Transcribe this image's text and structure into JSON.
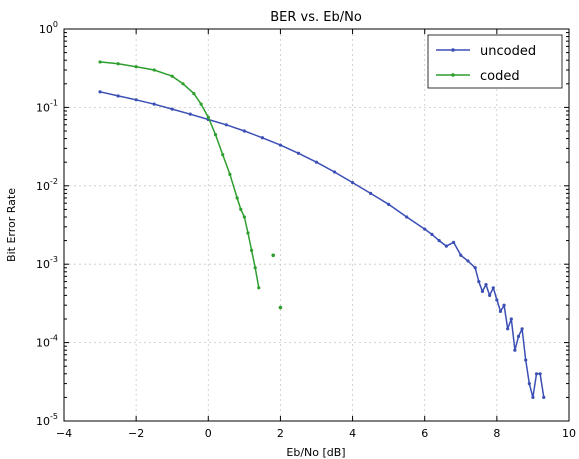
{
  "chart_data": {
    "type": "line",
    "title": "BER vs. Eb/No",
    "xlabel": "Eb/No [dB]",
    "ylabel": "Bit Error Rate",
    "xlim": [
      -4,
      10
    ],
    "ylim": [
      1e-05,
      1
    ],
    "yscale": "log",
    "grid": true,
    "legend_position": "top-right",
    "x_ticks": [
      -4,
      -2,
      0,
      2,
      4,
      6,
      8,
      10
    ],
    "x_tick_labels": [
      "−4",
      "−2",
      "0",
      "2",
      "4",
      "6",
      "8",
      "10"
    ],
    "y_ticks": [
      1e-05,
      0.0001,
      0.001,
      0.01,
      0.1,
      1
    ],
    "y_tick_labels": [
      {
        "base": "10",
        "exp": "-5"
      },
      {
        "base": "10",
        "exp": "-4"
      },
      {
        "base": "10",
        "exp": "-3"
      },
      {
        "base": "10",
        "exp": "-2"
      },
      {
        "base": "10",
        "exp": "-1"
      },
      {
        "base": "10",
        "exp": "0"
      }
    ],
    "series": [
      {
        "name": "uncoded",
        "color": "#3b4fb5",
        "x": [
          -3,
          -2.5,
          -2,
          -1.5,
          -1,
          -0.5,
          0,
          0.5,
          1,
          1.5,
          2,
          2.5,
          3,
          3.5,
          4,
          4.5,
          5,
          5.5,
          6,
          6.2,
          6.4,
          6.6,
          6.8,
          7,
          7.2,
          7.4,
          7.5,
          7.6,
          7.7,
          7.8,
          7.9,
          8,
          8.1,
          8.2,
          8.3,
          8.4,
          8.5,
          8.6,
          8.7,
          8.8,
          8.9,
          9,
          9.1,
          9.2,
          9.3
        ],
        "values": [
          0.158,
          0.14,
          0.125,
          0.11,
          0.095,
          0.082,
          0.07,
          0.06,
          0.05,
          0.041,
          0.033,
          0.026,
          0.02,
          0.015,
          0.011,
          0.008,
          0.0058,
          0.004,
          0.0028,
          0.0024,
          0.002,
          0.0017,
          0.0019,
          0.0013,
          0.0011,
          0.0009,
          0.0006,
          0.00045,
          0.00055,
          0.0004,
          0.0005,
          0.00035,
          0.00025,
          0.0003,
          0.00015,
          0.0002,
          8e-05,
          0.00012,
          0.00015,
          6e-05,
          3e-05,
          2e-05,
          4e-05,
          4e-05,
          2e-05
        ]
      },
      {
        "name": "coded",
        "color": "#2e9e2e",
        "x": [
          -3,
          -2.5,
          -2,
          -1.5,
          -1,
          -0.7,
          -0.4,
          -0.2,
          0,
          0.2,
          0.4,
          0.6,
          0.8,
          0.9,
          1.0,
          1.1,
          1.2,
          1.3,
          1.4
        ],
        "values": [
          0.38,
          0.36,
          0.33,
          0.3,
          0.25,
          0.2,
          0.15,
          0.11,
          0.075,
          0.045,
          0.025,
          0.014,
          0.007,
          0.005,
          0.004,
          0.0025,
          0.0015,
          0.0009,
          0.0005
        ]
      }
    ],
    "outliers": [
      {
        "x": 1.8,
        "value": 0.0013
      },
      {
        "x": 2.0,
        "value": 0.00028
      }
    ]
  }
}
